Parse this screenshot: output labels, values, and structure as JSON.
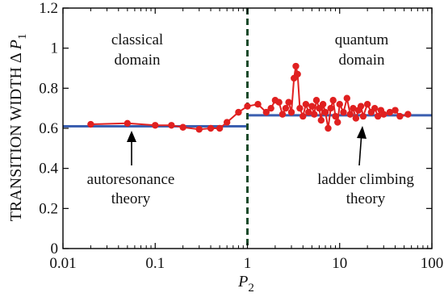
{
  "chart_data": {
    "type": "line",
    "x_scale": "log",
    "xlim": [
      0.01,
      100
    ],
    "ylim": [
      0,
      1.2
    ],
    "xlabel": {
      "base": "P",
      "sub": "2"
    },
    "ylabel": {
      "text": "TRANSITION  WIDTH  Δ ",
      "base": "P",
      "sub": "1"
    },
    "x_ticks": [
      {
        "value": 0.01,
        "label": "0.01"
      },
      {
        "value": 0.1,
        "label": "0.1"
      },
      {
        "value": 1,
        "label": "1"
      },
      {
        "value": 10,
        "label": "10"
      },
      {
        "value": 100,
        "label": "100"
      }
    ],
    "y_ticks": [
      {
        "value": 0,
        "label": "0"
      },
      {
        "value": 0.2,
        "label": "0.2"
      },
      {
        "value": 0.4,
        "label": "0.4"
      },
      {
        "value": 0.6,
        "label": "0.6"
      },
      {
        "value": 0.8,
        "label": "0.8"
      },
      {
        "value": 1,
        "label": "1"
      },
      {
        "value": 1.2,
        "label": "1.2"
      }
    ],
    "grid": false,
    "divider": {
      "x": 1,
      "style": "dashed",
      "color": "#1a4a2a"
    },
    "theory_lines": [
      {
        "x": [
          0.01,
          1
        ],
        "y": [
          0.61,
          0.61
        ],
        "color": "#3b5fb0"
      },
      {
        "x": [
          1,
          100
        ],
        "y": [
          0.665,
          0.665
        ],
        "color": "#3b5fb0"
      }
    ],
    "series": [
      {
        "color": "#e02020",
        "x": [
          0.02,
          0.05,
          0.1,
          0.15,
          0.2,
          0.3,
          0.4,
          0.5,
          0.6,
          0.8,
          1.0,
          1.3,
          1.6,
          1.8,
          2.0,
          2.2,
          2.4,
          2.6,
          2.8,
          3.0,
          3.2,
          3.35,
          3.5,
          3.7,
          4.0,
          4.3,
          4.6,
          5.0,
          5.3,
          5.6,
          6.0,
          6.3,
          6.6,
          7.0,
          7.5,
          8.0,
          8.5,
          9.0,
          9.5,
          10,
          11,
          12,
          13,
          14,
          15,
          16,
          17,
          18,
          20,
          22,
          24,
          26,
          28,
          30,
          35,
          40,
          45,
          55
        ],
        "y": [
          0.62,
          0.625,
          0.615,
          0.615,
          0.605,
          0.595,
          0.6,
          0.6,
          0.63,
          0.68,
          0.71,
          0.72,
          0.68,
          0.7,
          0.74,
          0.73,
          0.67,
          0.7,
          0.73,
          0.68,
          0.85,
          0.91,
          0.87,
          0.7,
          0.66,
          0.72,
          0.68,
          0.71,
          0.67,
          0.74,
          0.7,
          0.64,
          0.72,
          0.68,
          0.6,
          0.7,
          0.74,
          0.66,
          0.63,
          0.72,
          0.68,
          0.75,
          0.67,
          0.7,
          0.65,
          0.69,
          0.71,
          0.66,
          0.72,
          0.68,
          0.7,
          0.66,
          0.69,
          0.67,
          0.68,
          0.69,
          0.66,
          0.67
        ]
      }
    ],
    "annotations": {
      "classical_region": [
        "classical",
        "domain"
      ],
      "quantum_region": [
        "quantum",
        "domain"
      ],
      "autoresonance": [
        "autoresonance",
        "theory"
      ],
      "ladder": [
        "ladder climbing",
        "theory"
      ]
    }
  }
}
